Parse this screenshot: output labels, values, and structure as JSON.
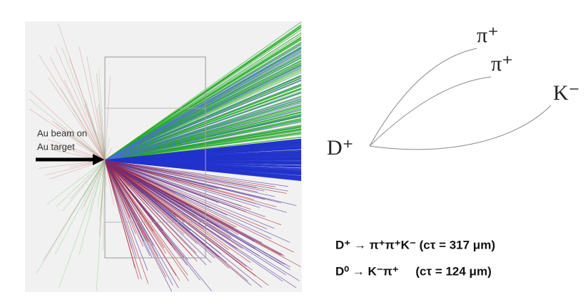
{
  "event_display": {
    "beam_label_1": "Au beam on",
    "beam_label_2": "Au target"
  },
  "decay_diagram": {
    "parent": "D⁺",
    "daughters": [
      "π⁺",
      "π⁺",
      "K⁻"
    ]
  },
  "equations": [
    "D⁺ → π⁺π⁺K⁻ (cτ = 317 μm)",
    "D⁰ → K⁻π⁺     (cτ = 124 μm)"
  ]
}
